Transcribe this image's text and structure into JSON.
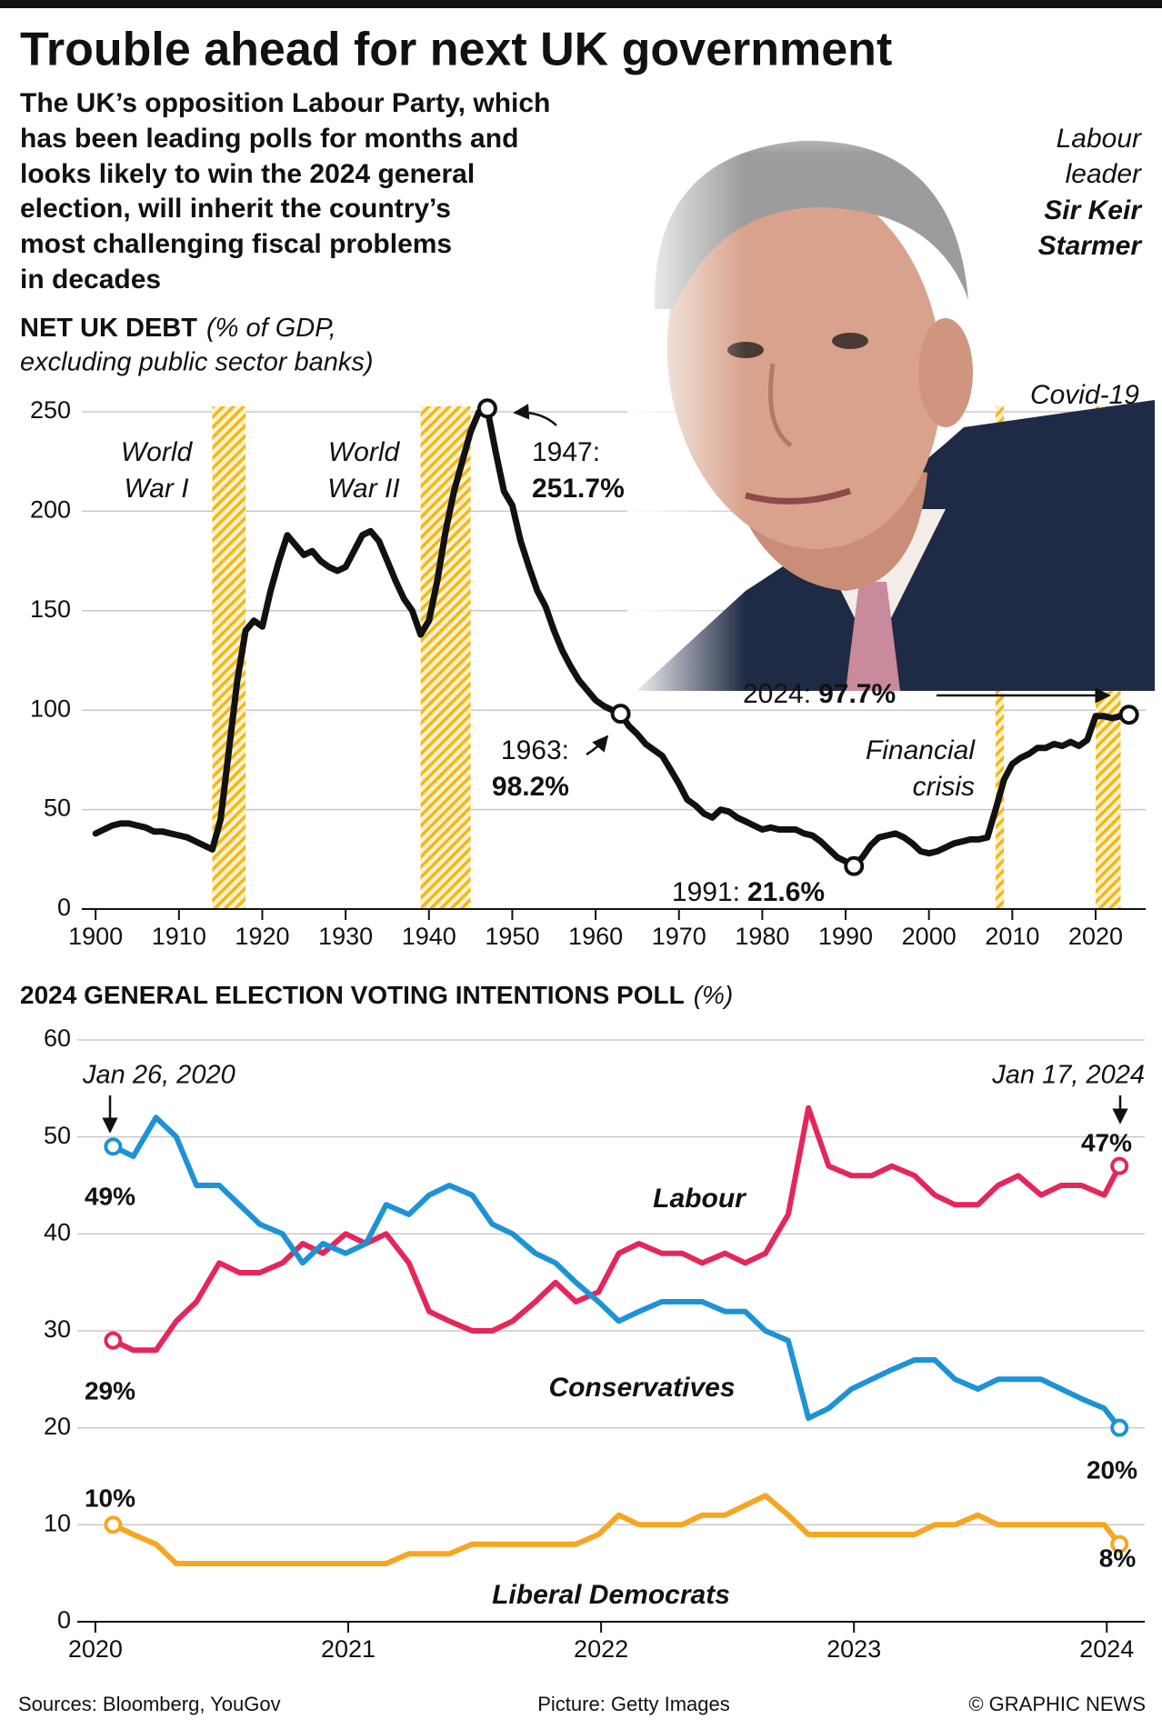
{
  "title": "Trouble ahead for next UK government",
  "subtitle": [
    "The UK’s opposition Labour Party, which",
    "has been leading polls for months and",
    "looks likely to win the 2024 general",
    "election, will inherit the country’s",
    "most challenging fiscal problems",
    "in decades"
  ],
  "photo_caption": [
    "Labour",
    "leader"
  ],
  "photo_name": [
    "Sir Keir",
    "Starmer"
  ],
  "chart_data": [
    {
      "type": "line",
      "title": "NET UK DEBT",
      "units": [
        "(% of GDP,",
        "excluding public sector banks)"
      ],
      "x": [
        1900,
        1901,
        1902,
        1903,
        1904,
        1905,
        1906,
        1907,
        1908,
        1909,
        1910,
        1911,
        1912,
        1913,
        1914,
        1915,
        1916,
        1917,
        1918,
        1919,
        1920,
        1921,
        1922,
        1923,
        1924,
        1925,
        1926,
        1927,
        1928,
        1929,
        1930,
        1931,
        1932,
        1933,
        1934,
        1935,
        1936,
        1937,
        1938,
        1939,
        1940,
        1941,
        1942,
        1943,
        1944,
        1945,
        1946,
        1947,
        1948,
        1949,
        1950,
        1951,
        1952,
        1953,
        1954,
        1955,
        1956,
        1957,
        1958,
        1959,
        1960,
        1961,
        1962,
        1963,
        1964,
        1965,
        1966,
        1967,
        1968,
        1969,
        1970,
        1971,
        1972,
        1973,
        1974,
        1975,
        1976,
        1977,
        1978,
        1979,
        1980,
        1981,
        1982,
        1983,
        1984,
        1985,
        1986,
        1987,
        1988,
        1989,
        1990,
        1991,
        1992,
        1993,
        1994,
        1995,
        1996,
        1997,
        1998,
        1999,
        2000,
        2001,
        2002,
        2003,
        2004,
        2005,
        2006,
        2007,
        2008,
        2009,
        2010,
        2011,
        2012,
        2013,
        2014,
        2015,
        2016,
        2017,
        2018,
        2019,
        2020,
        2021,
        2022,
        2023,
        2024
      ],
      "values": [
        38,
        40,
        42,
        43,
        43,
        42,
        41,
        39,
        39,
        38,
        37,
        36,
        34,
        32,
        30,
        45,
        80,
        115,
        140,
        145,
        142,
        160,
        175,
        188,
        183,
        178,
        180,
        175,
        172,
        170,
        172,
        180,
        188,
        190,
        185,
        175,
        165,
        156,
        150,
        138,
        145,
        165,
        190,
        210,
        225,
        240,
        250,
        251.7,
        230,
        210,
        203,
        185,
        172,
        160,
        152,
        140,
        130,
        122,
        115,
        110,
        105,
        102,
        100,
        98.2,
        92,
        88,
        83,
        80,
        77,
        70,
        63,
        55,
        52,
        48,
        46,
        50,
        49,
        46,
        44,
        42,
        40,
        41,
        40,
        40,
        40,
        38,
        37,
        34,
        30,
        26,
        24,
        21.6,
        26,
        32,
        36,
        37,
        38,
        36,
        33,
        29,
        28,
        29,
        31,
        33,
        34,
        35,
        35,
        36,
        50,
        65,
        73,
        76,
        78,
        81,
        81,
        83,
        82,
        84,
        82,
        85,
        97,
        97,
        96,
        97,
        97.7
      ],
      "color": "#111111",
      "xlim": [
        1899,
        2026
      ],
      "ylim": [
        0,
        250
      ],
      "xticks": [
        1900,
        1910,
        1920,
        1930,
        1940,
        1950,
        1960,
        1970,
        1980,
        1990,
        2000,
        2010,
        2020
      ],
      "yticks": [
        0,
        50,
        100,
        150,
        200,
        250
      ],
      "grid": true,
      "bands": [
        {
          "label": [
            "World",
            "War I"
          ],
          "start": 1914,
          "end": 1918
        },
        {
          "label": [
            "World",
            "War II"
          ],
          "start": 1939,
          "end": 1945
        },
        {
          "label": [
            "Financial",
            "crisis"
          ],
          "start": 2008,
          "end": 2009
        },
        {
          "label": [
            "Covid-19"
          ],
          "start": 2020,
          "end": 2023
        }
      ],
      "annotations": [
        {
          "x": 1947,
          "y": 251.7,
          "label": "1947:",
          "value_label": "251.7%"
        },
        {
          "x": 1963,
          "y": 98.2,
          "label": "1963:",
          "value_label": "98.2%"
        },
        {
          "x": 1991,
          "y": 21.6,
          "label": "1991:",
          "value_label": "21.6%"
        },
        {
          "x": 2024,
          "y": 97.7,
          "label": "2024:",
          "value_label": "97.7%"
        }
      ]
    },
    {
      "type": "line",
      "title": "2024 GENERAL ELECTION VOTING INTENTIONS POLL",
      "units": [
        "(%)"
      ],
      "x": [
        2020.07,
        2020.15,
        2020.24,
        2020.32,
        2020.4,
        2020.49,
        2020.57,
        2020.65,
        2020.74,
        2020.82,
        2020.9,
        2020.99,
        2021.07,
        2021.15,
        2021.24,
        2021.32,
        2021.4,
        2021.49,
        2021.57,
        2021.65,
        2021.74,
        2021.82,
        2021.9,
        2021.99,
        2022.07,
        2022.15,
        2022.24,
        2022.32,
        2022.4,
        2022.49,
        2022.57,
        2022.65,
        2022.74,
        2022.82,
        2022.9,
        2022.99,
        2023.07,
        2023.15,
        2023.24,
        2023.32,
        2023.4,
        2023.49,
        2023.57,
        2023.65,
        2023.74,
        2023.82,
        2023.9,
        2023.99,
        2024.05
      ],
      "series": [
        {
          "name": "Labour",
          "color": "#e5265a",
          "values": [
            29,
            28,
            28,
            31,
            33,
            37,
            36,
            36,
            37,
            39,
            38,
            40,
            39,
            40,
            37,
            32,
            31,
            30,
            30,
            31,
            33,
            35,
            33,
            34,
            38,
            39,
            38,
            38,
            37,
            38,
            37,
            38,
            42,
            53,
            47,
            46,
            46,
            47,
            46,
            44,
            43,
            43,
            45,
            46,
            44,
            45,
            45,
            44,
            47
          ],
          "value_labels": [
            "29%",
            null,
            null,
            null,
            null,
            null,
            null,
            null,
            null,
            null,
            null,
            null,
            null,
            null,
            null,
            null,
            null,
            null,
            null,
            null,
            null,
            null,
            null,
            null,
            null,
            null,
            null,
            null,
            null,
            null,
            null,
            null,
            null,
            null,
            null,
            null,
            null,
            null,
            null,
            null,
            null,
            null,
            null,
            null,
            null,
            null,
            null,
            null,
            "47%"
          ]
        },
        {
          "name": "Conservatives",
          "color": "#1d93d6",
          "values": [
            49,
            48,
            52,
            50,
            45,
            45,
            43,
            41,
            40,
            37,
            39,
            38,
            39,
            43,
            42,
            44,
            45,
            44,
            41,
            40,
            38,
            37,
            35,
            33,
            31,
            32,
            33,
            33,
            33,
            32,
            32,
            30,
            29,
            21,
            22,
            24,
            25,
            26,
            27,
            27,
            25,
            24,
            25,
            25,
            25,
            24,
            23,
            22,
            20
          ],
          "value_labels": [
            "49%",
            null,
            null,
            null,
            null,
            null,
            null,
            null,
            null,
            null,
            null,
            null,
            null,
            null,
            null,
            null,
            null,
            null,
            null,
            null,
            null,
            null,
            null,
            null,
            null,
            null,
            null,
            null,
            null,
            null,
            null,
            null,
            null,
            null,
            null,
            null,
            null,
            null,
            null,
            null,
            null,
            null,
            null,
            null,
            null,
            null,
            null,
            null,
            "20%"
          ]
        },
        {
          "name": "Liberal Democrats",
          "color": "#f5a623",
          "values": [
            10,
            9,
            8,
            6,
            6,
            6,
            6,
            6,
            6,
            6,
            6,
            6,
            6,
            6,
            7,
            7,
            7,
            8,
            8,
            8,
            8,
            8,
            8,
            9,
            11,
            10,
            10,
            10,
            11,
            11,
            12,
            13,
            11,
            9,
            9,
            9,
            9,
            9,
            9,
            10,
            10,
            11,
            10,
            10,
            10,
            10,
            10,
            10,
            8
          ],
          "value_labels": [
            "10%",
            null,
            null,
            null,
            null,
            null,
            null,
            null,
            null,
            null,
            null,
            null,
            null,
            null,
            null,
            null,
            null,
            null,
            null,
            null,
            null,
            null,
            null,
            null,
            null,
            null,
            null,
            null,
            null,
            null,
            null,
            null,
            null,
            null,
            null,
            null,
            null,
            null,
            null,
            null,
            null,
            null,
            null,
            null,
            null,
            null,
            null,
            null,
            "8%"
          ]
        }
      ],
      "xlim": [
        2019.95,
        2024.15
      ],
      "ylim": [
        0,
        60
      ],
      "xticks": [
        2020,
        2021,
        2022,
        2023,
        2024
      ],
      "yticks": [
        0,
        10,
        20,
        30,
        40,
        50,
        60
      ],
      "grid": true,
      "annotations": [
        {
          "x": 2020.07,
          "text": "Jan 26, 2020"
        },
        {
          "x": 2024.05,
          "text": "Jan 17, 2024"
        }
      ]
    }
  ],
  "footer": {
    "sources": "Sources: Bloomberg, YouGov",
    "picture": "Picture: Getty Images",
    "credit": "© GRAPHIC NEWS"
  }
}
